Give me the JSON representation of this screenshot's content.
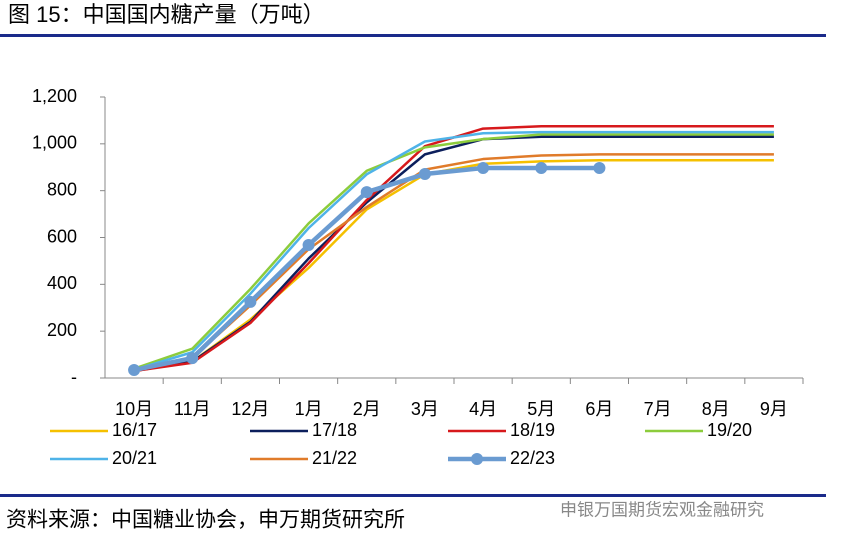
{
  "title": "图 15：中国国内糖产量（万吨）",
  "source": "资料来源：中国糖业协会，申万期货研究所",
  "watermark": "申银万国期货宏观金融研究",
  "chart_data": {
    "type": "line",
    "categories": [
      "10月",
      "11月",
      "12月",
      "1月",
      "2月",
      "3月",
      "4月",
      "5月",
      "6月",
      "7月",
      "8月",
      "9月"
    ],
    "ylim": [
      0,
      1200
    ],
    "yticks": [
      {
        "value": 0,
        "label": "-"
      },
      200,
      400,
      600,
      800,
      {
        "value": 1000,
        "label": "1,000"
      },
      {
        "value": 1200,
        "label": "1,200"
      }
    ],
    "series": [
      {
        "name": "16/17",
        "color": "#f5c000",
        "values": [
          30,
          70,
          250,
          470,
          720,
          870,
          915,
          925,
          930,
          930,
          930,
          930
        ]
      },
      {
        "name": "17/18",
        "color": "#0c1f5c",
        "values": [
          30,
          70,
          240,
          510,
          750,
          955,
          1020,
          1030,
          1030,
          1030,
          1030,
          1030
        ]
      },
      {
        "name": "18/19",
        "color": "#d7191c",
        "values": [
          30,
          65,
          235,
          490,
          760,
          990,
          1065,
          1075,
          1075,
          1075,
          1075,
          1075
        ]
      },
      {
        "name": "19/20",
        "color": "#8ccc3c",
        "values": [
          40,
          125,
          380,
          660,
          885,
          985,
          1020,
          1040,
          1040,
          1040,
          1040,
          1040
        ]
      },
      {
        "name": "20/21",
        "color": "#4fb3e8",
        "values": [
          35,
          110,
          360,
          640,
          870,
          1010,
          1045,
          1050,
          1050,
          1050,
          1050,
          1050
        ]
      },
      {
        "name": "21/22",
        "color": "#e07b2a",
        "values": [
          30,
          85,
          310,
          550,
          730,
          890,
          935,
          950,
          955,
          955,
          955,
          955
        ]
      },
      {
        "name": "22/23",
        "color": "#6a9bd1",
        "marker": true,
        "values": [
          34,
          85,
          325,
          568,
          794,
          871,
          897,
          897,
          897,
          null,
          null,
          null
        ]
      }
    ]
  }
}
